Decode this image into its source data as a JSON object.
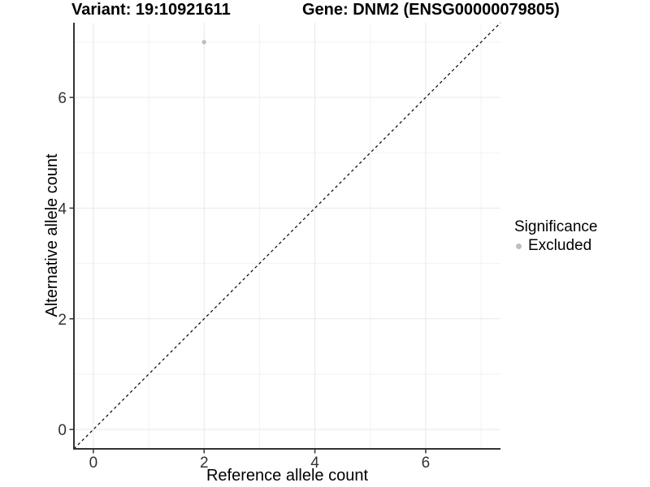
{
  "chart_data": {
    "type": "scatter",
    "title_left": "Variant: 19:10921611",
    "title_right": "Gene: DNM2 (ENSG00000079805)",
    "xlabel": "Reference allele count",
    "ylabel": "Alternative allele count",
    "xlim": [
      -0.35,
      7.35
    ],
    "ylim": [
      -0.35,
      7.35
    ],
    "x_major_ticks": [
      0,
      2,
      4,
      6
    ],
    "x_minor_ticks": [
      1,
      3,
      5,
      7
    ],
    "y_major_ticks": [
      0,
      2,
      4,
      6
    ],
    "y_minor_ticks": [
      1,
      3,
      5,
      7
    ],
    "points": [
      {
        "x": 2,
        "y": 7,
        "significance": "Excluded"
      }
    ],
    "reference_line": {
      "style": "dashed",
      "x0": -0.35,
      "y0": -0.35,
      "x1": 7.35,
      "y1": 7.35
    },
    "legend": {
      "title": "Significance",
      "position": "right",
      "items": [
        {
          "label": "Excluded",
          "color": "#bebebe"
        }
      ]
    },
    "grid": true,
    "colors": {
      "point": "#bebebe",
      "grid_major": "#e8e8e8",
      "grid_minor": "#f2f2f2",
      "axis": "#333333",
      "tick_label": "#333333",
      "reference_line": "#000000",
      "background": "#ffffff"
    }
  }
}
